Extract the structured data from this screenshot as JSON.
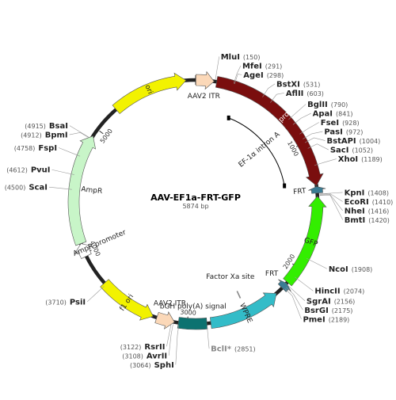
{
  "plasmid": {
    "name": "AAV-EF1a-FRT-GFP",
    "size_label": "5874 bp",
    "length": 5874
  },
  "colors": {
    "ori": "#f2f200",
    "itr": "#fbd8b8",
    "promoter": "#7a0e0e",
    "frt": "#3a7c94",
    "gfp": "#33ee00",
    "wpre": "#33bcc8",
    "polyA": "#0c7270",
    "f1ori": "#f2f200",
    "ampr": "#c8f5c8",
    "amprpromoter": "#ffffff"
  },
  "ticks": [
    {
      "bp": 1000,
      "label": "1000"
    },
    {
      "bp": 2000,
      "label": "2000"
    },
    {
      "bp": 3000,
      "label": "3000"
    },
    {
      "bp": 4000,
      "label": "4000"
    },
    {
      "bp": 5000,
      "label": "5000"
    }
  ],
  "features": [
    {
      "name": "ori",
      "start": 5210,
      "end": 5800,
      "dir": 1,
      "color": "ori",
      "label_mode": "inside"
    },
    {
      "name": "AAV2 ITR",
      "start": 2,
      "end": 142,
      "dir": 1,
      "color": "itr",
      "label_mode": "outer-text"
    },
    {
      "name": "EF-1α promoter",
      "start": 162,
      "end": 1343,
      "dir": 1,
      "color": "promoter",
      "label_mode": "inside-white"
    },
    {
      "name": "FRT",
      "start": 1350,
      "end": 1400,
      "dir": -1,
      "color": "frt",
      "label_mode": "inner-text"
    },
    {
      "name": "GFP",
      "start": 1425,
      "end": 2140,
      "dir": -1,
      "color": "gfp",
      "label_mode": "inside"
    },
    {
      "name": "FRT",
      "start": 2150,
      "end": 2200,
      "dir": -1,
      "color": "frt",
      "label_mode": "inner-text"
    },
    {
      "name": "WPRE",
      "start": 2260,
      "end": 2820,
      "dir": -1,
      "color": "wpre",
      "label_mode": "inside"
    },
    {
      "name": "bGH poly(A) signal",
      "start": 2850,
      "end": 3070,
      "dir": 0,
      "color": "polyA",
      "label_mode": "inner-text"
    },
    {
      "name": "AAV2 ITR",
      "start": 3100,
      "end": 3240,
      "dir": -1,
      "color": "itr",
      "label_mode": "inner-text"
    },
    {
      "name": "f1 ori",
      "start": 3270,
      "end": 3726,
      "dir": -1,
      "color": "f1ori",
      "label_mode": "inside"
    },
    {
      "name": "AmpR promoter",
      "start": 3975,
      "end": 4080,
      "dir": 1,
      "color": "amprpromoter",
      "label_mode": "inner-text-arc"
    },
    {
      "name": "AmpR",
      "start": 4080,
      "end": 4940,
      "dir": 1,
      "color": "ampr",
      "label_mode": "inner-text"
    }
  ],
  "inner_marks": [
    {
      "name": "EF-1α intron A",
      "start": 350,
      "end": 1300
    },
    {
      "name": "Factor Xa site",
      "bp": 2530
    }
  ],
  "enzymes": [
    {
      "name": "MluI",
      "pos": "(150)",
      "bp": 150,
      "gray": false
    },
    {
      "name": "MfeI",
      "pos": "(291)",
      "bp": 291,
      "gray": false
    },
    {
      "name": "AgeI",
      "pos": "(298)",
      "bp": 298,
      "gray": false
    },
    {
      "name": "BstXI",
      "pos": "(531)",
      "bp": 531,
      "gray": false
    },
    {
      "name": "AflII",
      "pos": "(603)",
      "bp": 603,
      "gray": false
    },
    {
      "name": "BglII",
      "pos": "(790)",
      "bp": 790,
      "gray": false
    },
    {
      "name": "ApaI",
      "pos": "(841)",
      "bp": 841,
      "gray": false
    },
    {
      "name": "FseI",
      "pos": "(928)",
      "bp": 928,
      "gray": false
    },
    {
      "name": "PasI",
      "pos": "(972)",
      "bp": 972,
      "gray": false
    },
    {
      "name": "BstAPI",
      "pos": "(1004)",
      "bp": 1004,
      "gray": false
    },
    {
      "name": "SacI",
      "pos": "(1052)",
      "bp": 1052,
      "gray": false
    },
    {
      "name": "XhoI",
      "pos": "(1189)",
      "bp": 1189,
      "gray": false
    },
    {
      "name": "KpnI",
      "pos": "(1408)",
      "bp": 1408,
      "gray": false
    },
    {
      "name": "EcoRI",
      "pos": "(1410)",
      "bp": 1410,
      "gray": false
    },
    {
      "name": "NheI",
      "pos": "(1416)",
      "bp": 1416,
      "gray": false
    },
    {
      "name": "BmtI",
      "pos": "(1420)",
      "bp": 1420,
      "gray": false
    },
    {
      "name": "NcoI",
      "pos": "(1908)",
      "bp": 1908,
      "gray": false
    },
    {
      "name": "HincII",
      "pos": "(2074)",
      "bp": 2074,
      "gray": false
    },
    {
      "name": "SgrAI",
      "pos": "(2156)",
      "bp": 2156,
      "gray": false
    },
    {
      "name": "BsrGI",
      "pos": "(2175)",
      "bp": 2175,
      "gray": false
    },
    {
      "name": "PmeI",
      "pos": "(2189)",
      "bp": 2189,
      "gray": false
    },
    {
      "name": "BclI*",
      "pos": "(2851)",
      "bp": 2851,
      "gray": true
    },
    {
      "name": "SphI",
      "pos": "(3064)",
      "bp": 3064,
      "gray": false
    },
    {
      "name": "AvrII",
      "pos": "(3108)",
      "bp": 3108,
      "gray": false
    },
    {
      "name": "RsrII",
      "pos": "(3122)",
      "bp": 3122,
      "gray": false
    },
    {
      "name": "PsiI",
      "pos": "(3710)",
      "bp": 3710,
      "gray": false
    },
    {
      "name": "ScaI",
      "pos": "(4500)",
      "bp": 4500,
      "gray": false
    },
    {
      "name": "PvuI",
      "pos": "(4612)",
      "bp": 4612,
      "gray": false
    },
    {
      "name": "FspI",
      "pos": "(4758)",
      "bp": 4758,
      "gray": false
    },
    {
      "name": "BpmI",
      "pos": "(4912)",
      "bp": 4912,
      "gray": false
    },
    {
      "name": "BsaI",
      "pos": "(4915)",
      "bp": 4915,
      "gray": false
    }
  ]
}
